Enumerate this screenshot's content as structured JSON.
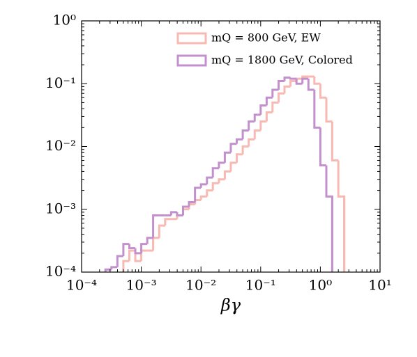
{
  "chart_data": {
    "type": "histogram",
    "xlabel": "βγ",
    "xscale": "log",
    "yscale": "log",
    "xlim": [
      0.0001,
      10
    ],
    "ylim": [
      0.0001,
      1
    ],
    "xticks": [
      {
        "value": 0.0001,
        "label": "10⁻⁴"
      },
      {
        "value": 0.001,
        "label": "10⁻³"
      },
      {
        "value": 0.01,
        "label": "10⁻²"
      },
      {
        "value": 0.1,
        "label": "10⁻¹"
      },
      {
        "value": 1,
        "label": "10⁰"
      },
      {
        "value": 10,
        "label": "10¹"
      }
    ],
    "yticks": [
      {
        "value": 0.0001,
        "label": "10⁻⁴"
      },
      {
        "value": 0.001,
        "label": "10⁻³"
      },
      {
        "value": 0.01,
        "label": "10⁻²"
      },
      {
        "value": 0.1,
        "label": "10⁻¹"
      },
      {
        "value": 1,
        "label": "10⁰"
      }
    ],
    "legend": "upper right",
    "bins": [
      0.0002,
      0.000251,
      0.000316,
      0.000398,
      0.000501,
      0.000631,
      0.000794,
      0.001,
      0.00126,
      0.00158,
      0.002,
      0.00251,
      0.00316,
      0.00398,
      0.00501,
      0.00631,
      0.00794,
      0.01,
      0.0126,
      0.0158,
      0.02,
      0.0251,
      0.0316,
      0.0398,
      0.0501,
      0.0631,
      0.0794,
      0.1,
      0.126,
      0.158,
      0.2,
      0.251,
      0.316,
      0.398,
      0.501,
      0.631,
      0.794,
      1,
      1.26,
      1.58,
      2,
      2.51,
      3.16
    ],
    "series": [
      {
        "name": "mQ = 800 GeV,  EW",
        "color": "#f7b9b1",
        "values": [
          0,
          0,
          0,
          0,
          0.00015,
          0.00022,
          0.00015,
          0.00022,
          0.00022,
          0.00035,
          0.00055,
          0.0007,
          0.0007,
          0.0008,
          0.001,
          0.0012,
          0.0014,
          0.0016,
          0.002,
          0.0026,
          0.003,
          0.004,
          0.0055,
          0.0075,
          0.01,
          0.013,
          0.018,
          0.025,
          0.035,
          0.05,
          0.07,
          0.09,
          0.11,
          0.12,
          0.13,
          0.13,
          0.1,
          0.06,
          0.025,
          0.006,
          0.0016,
          0
        ]
      },
      {
        "name": "mQ = 1800 GeV,  Colored",
        "color": "#c290cc",
        "values": [
          0,
          0.00011,
          0.00012,
          0.00018,
          0.00028,
          0.00024,
          0.0002,
          0.00028,
          0.00035,
          0.0008,
          0.0008,
          0.0008,
          0.0009,
          0.0008,
          0.0011,
          0.0013,
          0.0022,
          0.0025,
          0.0032,
          0.0045,
          0.0055,
          0.008,
          0.011,
          0.013,
          0.018,
          0.025,
          0.032,
          0.045,
          0.06,
          0.08,
          0.11,
          0.125,
          0.12,
          0.1,
          0.12,
          0.08,
          0.02,
          0.005,
          0.0016,
          0,
          0,
          0
        ]
      }
    ]
  }
}
